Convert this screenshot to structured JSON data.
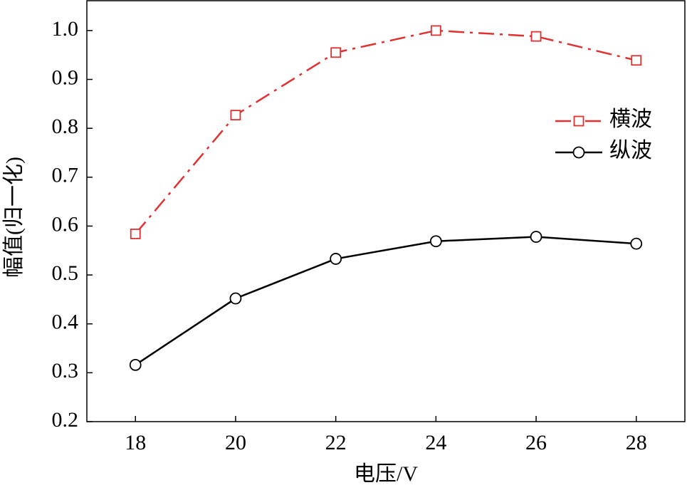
{
  "chart_data": {
    "type": "line",
    "x_label": "电压/V",
    "y_label": "幅值(归一化)",
    "x": [
      18,
      20,
      22,
      24,
      26,
      28
    ],
    "series": [
      {
        "name": "横波",
        "color": "#e03030",
        "dash": "dashdot",
        "marker": "square",
        "values": [
          0.584,
          0.827,
          0.955,
          1.0,
          0.988,
          0.939
        ]
      },
      {
        "name": "纵波",
        "color": "#000000",
        "dash": "solid",
        "marker": "circle",
        "values": [
          0.316,
          0.452,
          0.533,
          0.569,
          0.578,
          0.564
        ]
      }
    ],
    "xlim": [
      17.03,
      28.97
    ],
    "xticks": [
      18,
      20,
      22,
      24,
      26,
      28
    ],
    "ylim": [
      0.2,
      1.061
    ],
    "yticks": [
      0.2,
      0.3,
      0.4,
      0.5,
      0.6,
      0.7,
      0.8,
      0.9,
      {
        "value": 1.0,
        "label": "1.0"
      }
    ],
    "grid": false,
    "legend": "center right"
  }
}
